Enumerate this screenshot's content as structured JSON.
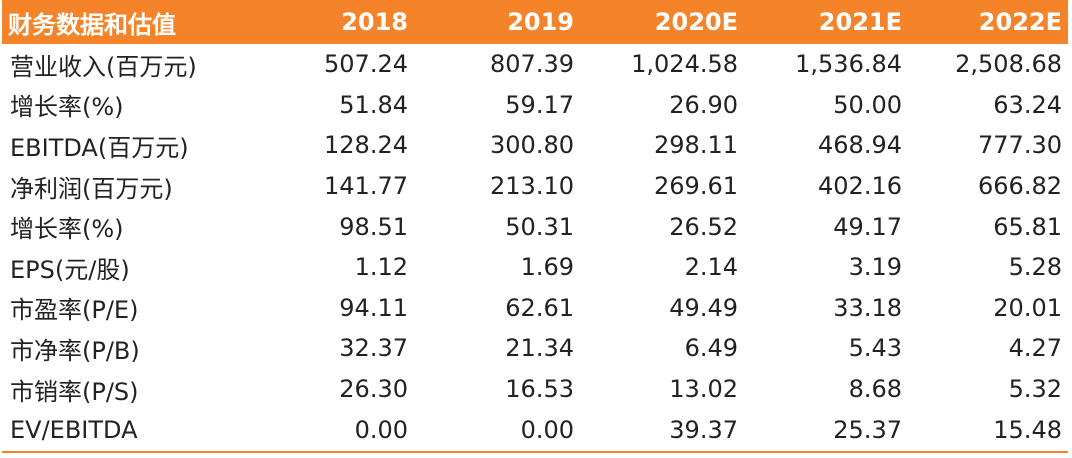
{
  "header": {
    "title": "财务数据和估值",
    "years": [
      "2018",
      "2019",
      "2020E",
      "2021E",
      "2022E"
    ]
  },
  "colors": {
    "header_bg": "#f5832a",
    "header_text": "#ffffff",
    "rule": "#f5832a"
  },
  "rows": [
    {
      "label": "营业收入(百万元)",
      "values": [
        "507.24",
        "807.39",
        "1,024.58",
        "1,536.84",
        "2,508.68"
      ]
    },
    {
      "label": "增长率(%)",
      "values": [
        "51.84",
        "59.17",
        "26.90",
        "50.00",
        "63.24"
      ]
    },
    {
      "label": "EBITDA(百万元)",
      "values": [
        "128.24",
        "300.80",
        "298.11",
        "468.94",
        "777.30"
      ]
    },
    {
      "label": "净利润(百万元)",
      "values": [
        "141.77",
        "213.10",
        "269.61",
        "402.16",
        "666.82"
      ]
    },
    {
      "label": "增长率(%)",
      "values": [
        "98.51",
        "50.31",
        "26.52",
        "49.17",
        "65.81"
      ]
    },
    {
      "label": "EPS(元/股)",
      "values": [
        "1.12",
        "1.69",
        "2.14",
        "3.19",
        "5.28"
      ]
    },
    {
      "label": "市盈率(P/E)",
      "values": [
        "94.11",
        "62.61",
        "49.49",
        "33.18",
        "20.01"
      ]
    },
    {
      "label": "市净率(P/B)",
      "values": [
        "32.37",
        "21.34",
        "6.49",
        "5.43",
        "4.27"
      ]
    },
    {
      "label": "市销率(P/S)",
      "values": [
        "26.30",
        "16.53",
        "13.02",
        "8.68",
        "5.32"
      ]
    },
    {
      "label": "EV/EBITDA",
      "values": [
        "0.00",
        "0.00",
        "39.37",
        "25.37",
        "15.48"
      ]
    }
  ]
}
